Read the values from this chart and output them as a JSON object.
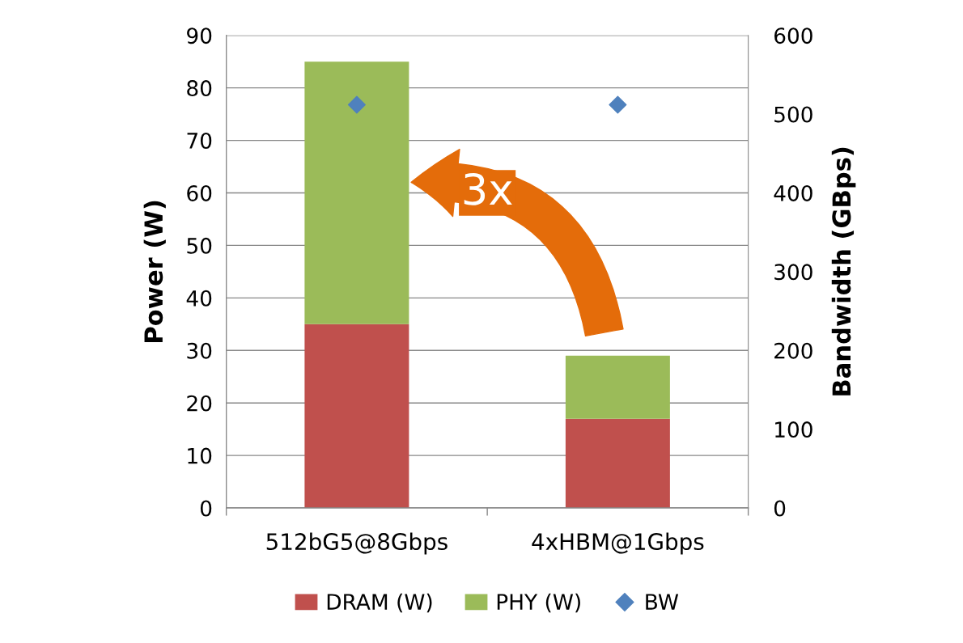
{
  "chart_data": {
    "type": "bar",
    "stacked": true,
    "ylabel": "Power (W)",
    "y2label": "Bandwidth (GBps)",
    "categories": [
      "512bG5@8Gbps",
      "4xHBM@1Gbps"
    ],
    "series": [
      {
        "name": "DRAM (W)",
        "color": "#c0504d",
        "values": [
          35,
          17
        ]
      },
      {
        "name": "PHY (W)",
        "color": "#9bbb59",
        "values": [
          50,
          12
        ]
      },
      {
        "name": "BW",
        "type": "scatter",
        "axis": "y2",
        "color": "#4f81bd",
        "marker": "diamond",
        "values": [
          512,
          512
        ]
      }
    ],
    "ylim": [
      0,
      90
    ],
    "yticks": [
      0,
      10,
      20,
      30,
      40,
      50,
      60,
      70,
      80,
      90
    ],
    "y2lim": [
      0,
      600
    ],
    "y2ticks": [
      0,
      100,
      200,
      300,
      400,
      500,
      600
    ],
    "grid": "y",
    "legend": "bottom",
    "annotations": [
      "3x"
    ]
  }
}
